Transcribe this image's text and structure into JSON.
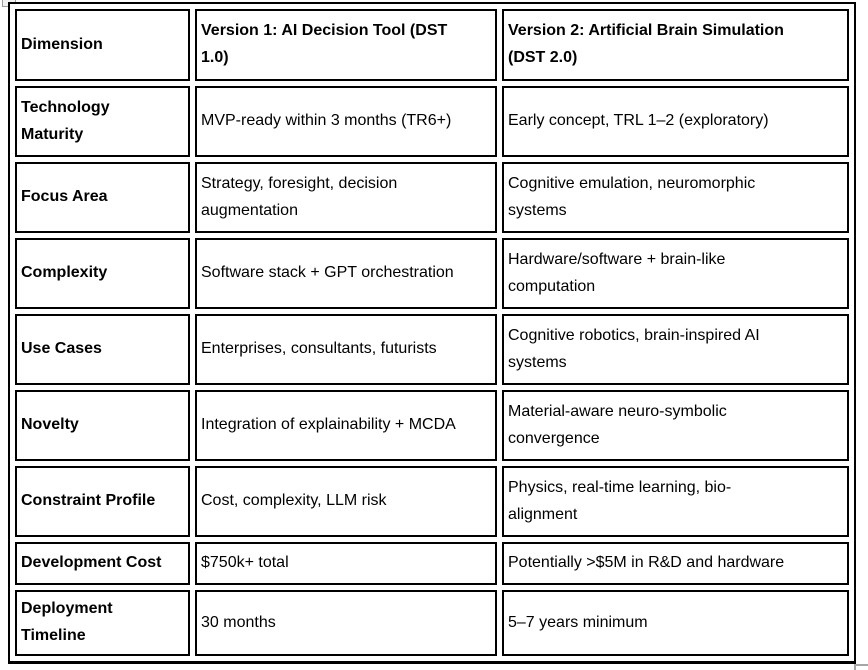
{
  "table": {
    "header": {
      "c1": "Dimension",
      "c2": "Version 1: AI Decision Tool (DST\n1.0)",
      "c3": "Version 2: Artificial Brain Simulation\n(DST 2.0)"
    },
    "rows": [
      {
        "c1": "Technology\nMaturity",
        "c2": "MVP-ready within 3 months (TR6+)",
        "c3": "Early concept, TRL 1–2 (exploratory)"
      },
      {
        "c1": "Focus Area",
        "c2": "Strategy, foresight, decision\naugmentation",
        "c3": "Cognitive emulation, neuromorphic\nsystems"
      },
      {
        "c1": "Complexity",
        "c2": "Software stack + GPT orchestration",
        "c3": "Hardware/software + brain-like\ncomputation"
      },
      {
        "c1": "Use Cases",
        "c2": "Enterprises, consultants, futurists",
        "c3": "Cognitive robotics, brain-inspired AI\nsystems"
      },
      {
        "c1": "Novelty",
        "c2": "Integration of explainability + MCDA",
        "c3": "Material-aware neuro-symbolic\nconvergence"
      },
      {
        "c1": "Constraint Profile",
        "c2": "Cost, complexity, LLM risk",
        "c3": "Physics, real-time learning, bio-\nalignment"
      },
      {
        "c1": "Development Cost",
        "c2": "$750k+ total",
        "c3": "Potentially >$5M in R&D and hardware"
      },
      {
        "c1": "Deployment\nTimeline",
        "c2": "30 months",
        "c3": "5–7 years minimum"
      }
    ],
    "colors": {
      "border": "#000000",
      "text": "#000000",
      "background": "#ffffff",
      "handle": "#a6a6a6"
    }
  }
}
